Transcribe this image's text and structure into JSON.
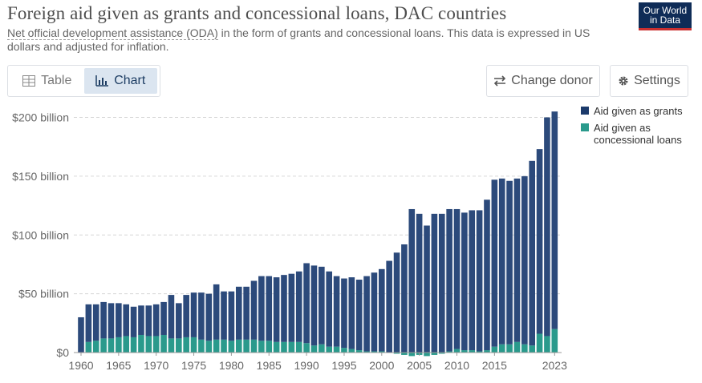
{
  "header": {
    "title": "Foreign aid given as grants and concessional loans, DAC countries",
    "subtitle_link": "Net official development assistance (ODA)",
    "subtitle_rest": " in the form of grants and concessional loans. This data is expressed in US dollars and adjusted for inflation.",
    "logo_line1": "Our World",
    "logo_line2": "in Data"
  },
  "tabs": [
    {
      "label": "Table",
      "icon": "table-icon",
      "active": false
    },
    {
      "label": "Chart",
      "icon": "chart-icon",
      "active": true
    }
  ],
  "buttons": {
    "change_donor": {
      "label": "Change donor",
      "icon": "swap-arrows-icon"
    },
    "settings": {
      "label": "Settings",
      "icon": "gear-icon"
    }
  },
  "colors": {
    "grants": "#2c4a7b",
    "loans": "#2a9a8c",
    "grid": "#d6d6d6"
  },
  "chart_data": {
    "type": "bar",
    "stacked": true,
    "x": [
      1960,
      1961,
      1962,
      1963,
      1964,
      1965,
      1966,
      1967,
      1968,
      1969,
      1970,
      1971,
      1972,
      1973,
      1974,
      1975,
      1976,
      1977,
      1978,
      1979,
      1980,
      1981,
      1982,
      1983,
      1984,
      1985,
      1986,
      1987,
      1988,
      1989,
      1990,
      1991,
      1992,
      1993,
      1994,
      1995,
      1996,
      1997,
      1998,
      1999,
      2000,
      2001,
      2002,
      2003,
      2004,
      2005,
      2006,
      2007,
      2008,
      2009,
      2010,
      2011,
      2012,
      2013,
      2014,
      2015,
      2016,
      2017,
      2018,
      2019,
      2020,
      2021,
      2022,
      2023
    ],
    "series": [
      {
        "name": "Aid given as grants",
        "values": [
          30,
          32,
          31,
          31,
          30,
          29,
          27,
          26,
          25,
          26,
          27,
          28,
          37,
          30,
          36,
          38,
          40,
          40,
          47,
          41,
          42,
          45,
          45,
          50,
          55,
          55,
          55,
          57,
          58,
          60,
          68,
          68,
          66,
          64,
          60,
          59,
          61,
          60,
          64,
          67,
          70,
          78,
          85,
          92,
          122,
          118,
          108,
          118,
          118,
          121,
          119,
          117,
          119,
          120,
          128,
          142,
          141,
          139,
          139,
          143,
          157,
          157,
          186,
          185
        ],
        "display": [
          30,
          32,
          31,
          31,
          30,
          29,
          27,
          26,
          25,
          26,
          27,
          28,
          37,
          30,
          36,
          38,
          40,
          40,
          47,
          41,
          42,
          45,
          45,
          50,
          55,
          55,
          55,
          57,
          58,
          60,
          68,
          68,
          66,
          64,
          60,
          59,
          61,
          60,
          64,
          67,
          70,
          78,
          85,
          92,
          122,
          118,
          108,
          118,
          118,
          121,
          119,
          117,
          119,
          120,
          128,
          142,
          141,
          139,
          139,
          143,
          157,
          157,
          186,
          185
        ]
      },
      {
        "name": "Aid given as concessional loans",
        "values": [
          0,
          9,
          10,
          12,
          12,
          13,
          14,
          13,
          15,
          14,
          14,
          15,
          12,
          12,
          13,
          13,
          11,
          10,
          11,
          11,
          10,
          11,
          11,
          11,
          10,
          10,
          9,
          9,
          9,
          9,
          8,
          6,
          7,
          5,
          5,
          4,
          3,
          2,
          1,
          1,
          1,
          0,
          -1,
          -2,
          -3,
          -2,
          -3,
          -2,
          -1,
          1,
          3,
          2,
          2,
          1,
          2,
          5,
          7,
          7,
          9,
          7,
          6,
          16,
          14,
          20
        ],
        "display": [
          0,
          9,
          10,
          12,
          12,
          13,
          14,
          13,
          15,
          14,
          14,
          15,
          12,
          12,
          13,
          13,
          11,
          10,
          11,
          11,
          10,
          11,
          11,
          11,
          10,
          10,
          9,
          9,
          9,
          9,
          8,
          6,
          7,
          5,
          5,
          4,
          3,
          2,
          1,
          1,
          1,
          0,
          -1,
          -2,
          -3,
          -2,
          -3,
          -2,
          -1,
          1,
          3,
          2,
          2,
          1,
          2,
          5,
          7,
          7,
          9,
          7,
          6,
          16,
          14,
          20
        ]
      }
    ],
    "y_ticks": [
      0,
      50,
      100,
      150,
      200
    ],
    "y_tick_labels": [
      "$0",
      "$50 billion",
      "$100 billion",
      "$150 billion",
      "$200 billion"
    ],
    "x_ticks": [
      1960,
      1965,
      1970,
      1975,
      1980,
      1985,
      1990,
      1995,
      2000,
      2005,
      2010,
      2015,
      2023
    ],
    "x_tick_labels": [
      "1960",
      "1965",
      "1970",
      "1975",
      "1980",
      "1985",
      "1990",
      "1995",
      "2000",
      "2005",
      "2010",
      "2015",
      "2023"
    ],
    "ylim": [
      0,
      210
    ],
    "grid": true,
    "legend_position": "right"
  }
}
